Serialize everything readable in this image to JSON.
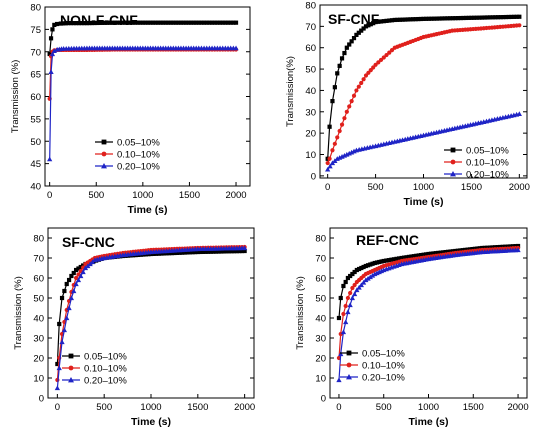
{
  "chart_data": [
    {
      "type": "line",
      "title": "NON-F-CNF",
      "xlabel": "Time (s)",
      "ylabel": "Transmission (%)",
      "xlim": [
        -50,
        2150
      ],
      "ylim": [
        40,
        80
      ],
      "xticks": [
        0,
        500,
        1000,
        1500,
        2000
      ],
      "yticks": [
        40,
        45,
        50,
        55,
        60,
        65,
        70,
        75,
        80
      ],
      "legend_position": "center-left",
      "series": [
        {
          "name": "0.05–10%",
          "color": "#000000",
          "marker": "square",
          "x": [
            0,
            15,
            30,
            50,
            80,
            120,
            200,
            400,
            700,
            1000,
            1300,
            1600,
            2000
          ],
          "y": [
            69.5,
            73,
            75,
            76,
            76.2,
            76.3,
            76.4,
            76.4,
            76.5,
            76.5,
            76.5,
            76.5,
            76.5
          ]
        },
        {
          "name": "0.10–10%",
          "color": "#e0201c",
          "marker": "circle",
          "x": [
            0,
            15,
            30,
            50,
            80,
            150,
            400,
            700,
            1000,
            1300,
            1600,
            2000
          ],
          "y": [
            59.5,
            69,
            70,
            70.3,
            70.4,
            70.4,
            70.4,
            70.5,
            70.5,
            70.5,
            70.5,
            70.5
          ]
        },
        {
          "name": "0.20–10%",
          "color": "#1f24c6",
          "marker": "triangle",
          "x": [
            0,
            15,
            30,
            50,
            80,
            150,
            400,
            700,
            1000,
            1300,
            1600,
            2000
          ],
          "y": [
            46,
            65.5,
            69.5,
            70.2,
            70.5,
            70.7,
            70.8,
            70.8,
            70.8,
            70.8,
            70.8,
            70.8
          ]
        }
      ]
    },
    {
      "type": "line",
      "title": "SF-CNF",
      "xlabel": "Time (s)",
      "ylabel": "Transmission(%)",
      "xlim": [
        -80,
        2080
      ],
      "ylim": [
        -1,
        80
      ],
      "xticks": [
        0,
        500,
        1000,
        1500,
        2000
      ],
      "yticks": [
        0,
        10,
        20,
        30,
        40,
        50,
        60,
        70,
        80
      ],
      "legend_position": "bottom-right",
      "series": [
        {
          "name": "0.05–10%",
          "color": "#000000",
          "marker": "square",
          "x": [
            0,
            20,
            50,
            100,
            150,
            200,
            300,
            400,
            500,
            700,
            1000,
            1500,
            2000
          ],
          "y": [
            8,
            23,
            35,
            48,
            55,
            60,
            66,
            70,
            72,
            73,
            73.5,
            74,
            74.5
          ]
        },
        {
          "name": "0.10–10%",
          "color": "#e0201c",
          "marker": "circle",
          "x": [
            0,
            20,
            50,
            100,
            200,
            300,
            400,
            500,
            700,
            1000,
            1300,
            1600,
            2000
          ],
          "y": [
            6,
            8,
            12,
            18,
            30,
            40,
            47,
            52,
            60,
            65,
            68,
            69,
            70.5
          ]
        },
        {
          "name": "0.20–10%",
          "color": "#1f24c6",
          "marker": "triangle",
          "x": [
            0,
            50,
            100,
            200,
            300,
            500,
            700,
            1000,
            1300,
            1600,
            1800,
            2000
          ],
          "y": [
            3,
            6,
            8,
            10,
            12,
            14,
            16,
            19,
            22,
            25,
            27,
            29
          ]
        }
      ]
    },
    {
      "type": "line",
      "title": "SF-CNC",
      "xlabel": "Time (s)",
      "ylabel": "Transmission (%)",
      "xlim": [
        -100,
        2100
      ],
      "ylim": [
        0,
        85
      ],
      "xticks": [
        0,
        500,
        1000,
        1500,
        2000
      ],
      "yticks": [
        0,
        10,
        20,
        30,
        40,
        50,
        60,
        70,
        80
      ],
      "legend_position": "bottom-center",
      "series": [
        {
          "name": "0.05–10%",
          "color": "#000000",
          "marker": "square",
          "x": [
            0,
            20,
            50,
            100,
            150,
            200,
            300,
            500,
            700,
            1000,
            1500,
            2000
          ],
          "y": [
            17,
            37,
            50,
            57,
            61,
            64,
            67,
            70,
            71,
            72,
            73,
            73.5
          ]
        },
        {
          "name": "0.10–10%",
          "color": "#e0201c",
          "marker": "circle",
          "x": [
            0,
            20,
            50,
            100,
            150,
            200,
            300,
            400,
            500,
            700,
            1000,
            1500,
            2000
          ],
          "y": [
            9,
            20,
            32,
            44,
            53,
            60,
            67,
            70,
            71,
            72.5,
            74,
            75,
            75.5
          ]
        },
        {
          "name": "0.20–10%",
          "color": "#1f24c6",
          "marker": "triangle",
          "x": [
            0,
            20,
            50,
            100,
            150,
            200,
            300,
            400,
            500,
            700,
            1000,
            1500,
            2000
          ],
          "y": [
            5,
            15,
            28,
            40,
            50,
            57,
            65,
            69,
            70,
            71.5,
            73,
            74.5,
            75
          ]
        }
      ]
    },
    {
      "type": "line",
      "title": "REF-CNC",
      "xlabel": "Time (s)",
      "ylabel": "Transmission (%)",
      "xlim": [
        -100,
        2100
      ],
      "ylim": [
        0,
        85
      ],
      "xticks": [
        0,
        500,
        1000,
        1500,
        2000
      ],
      "yticks": [
        0,
        10,
        20,
        30,
        40,
        50,
        60,
        70,
        80
      ],
      "legend_position": "bottom-center",
      "series": [
        {
          "name": "0.05–10%",
          "color": "#000000",
          "marker": "square",
          "x": [
            0,
            20,
            50,
            100,
            150,
            200,
            300,
            400,
            500,
            700,
            1000,
            1300,
            1600,
            2000
          ],
          "y": [
            40,
            50,
            56,
            60,
            62,
            64,
            66,
            67.5,
            68.5,
            70,
            72,
            73.5,
            75,
            76
          ]
        },
        {
          "name": "0.10–10%",
          "color": "#e0201c",
          "marker": "circle",
          "x": [
            0,
            20,
            50,
            100,
            150,
            200,
            300,
            400,
            500,
            700,
            1000,
            1300,
            1600,
            2000
          ],
          "y": [
            20,
            32,
            42,
            50,
            55,
            58,
            62,
            64,
            66,
            68.5,
            70.5,
            72.5,
            74,
            75
          ]
        },
        {
          "name": "0.20–10%",
          "color": "#1f24c6",
          "marker": "triangle",
          "x": [
            0,
            20,
            50,
            100,
            150,
            200,
            300,
            400,
            500,
            700,
            1000,
            1300,
            1600,
            2000
          ],
          "y": [
            9,
            22,
            33,
            43,
            50,
            54,
            59,
            62,
            64,
            67,
            69.5,
            71.5,
            73,
            74
          ]
        }
      ]
    }
  ]
}
